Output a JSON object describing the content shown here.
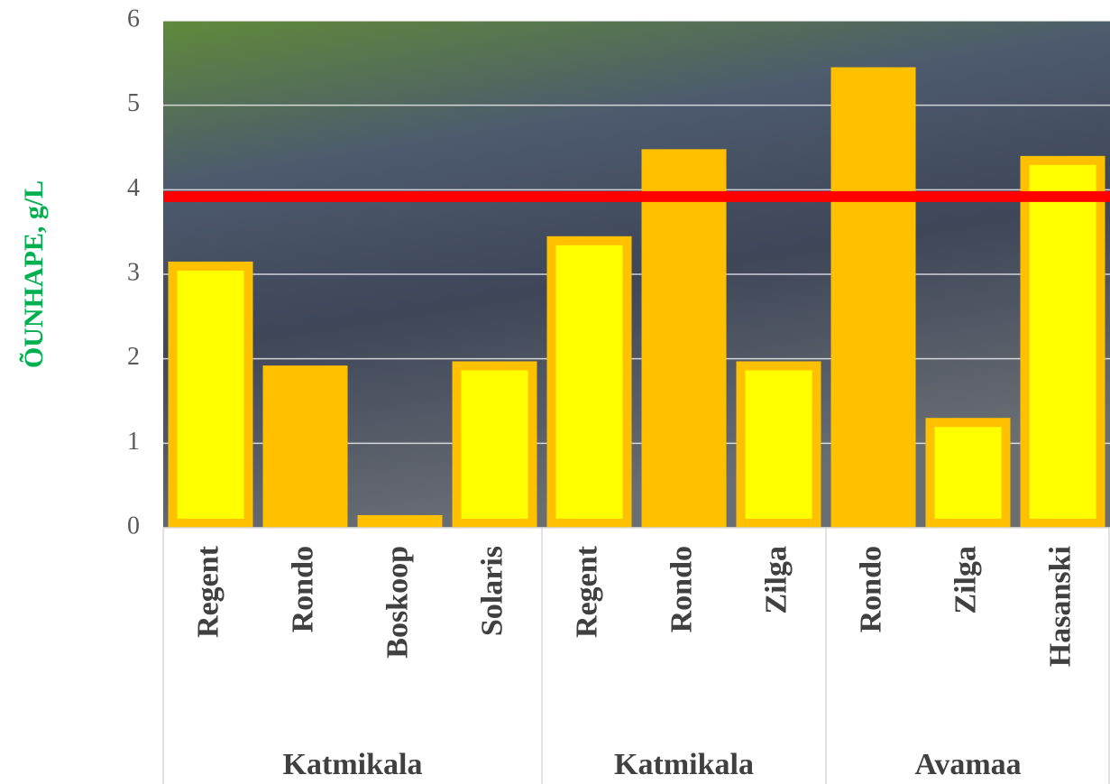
{
  "chart_data": {
    "type": "bar",
    "y_label": "ÕUNHAPE, g/L",
    "categories": [
      "Regent",
      "Rondo",
      "Boskoop",
      "Solaris",
      "Regent",
      "Rondo",
      "Zilga",
      "Rondo",
      "Zilga",
      "Hasanski"
    ],
    "values": [
      3.15,
      1.92,
      0.15,
      1.97,
      3.45,
      4.48,
      1.97,
      5.45,
      1.3,
      4.4
    ],
    "fill_colors": [
      "#FFFF00",
      "#FFC000",
      "#FFC000",
      "#FFFF00",
      "#FFFF00",
      "#FFC000",
      "#FFFF00",
      "#FFC000",
      "#FFFF00",
      "#FFFF00"
    ],
    "border_color": "#FFC000",
    "groups": [
      {
        "name": "Katmikala",
        "span": 4
      },
      {
        "name": "Katmikala",
        "span": 3
      },
      {
        "name": "Avamaa",
        "span": 3
      }
    ],
    "reference_line": {
      "value": 3.92,
      "color": "#FF0000"
    },
    "ylim": [
      0,
      6
    ],
    "yticks": [
      0,
      1,
      2,
      3,
      4,
      5,
      6
    ],
    "grid": true
  }
}
